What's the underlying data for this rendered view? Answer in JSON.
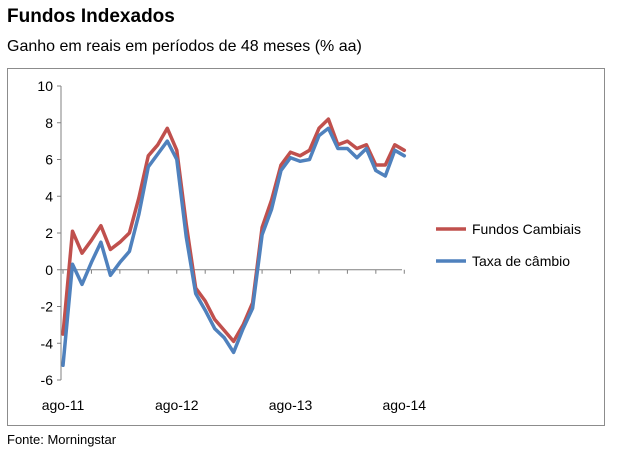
{
  "header": {
    "title": "Fundos Indexados",
    "subtitle": "Ganho em reais em períodos de 48 meses (% aa)"
  },
  "footer": {
    "source": "Fonte: Morningstar"
  },
  "chart_data": {
    "type": "line",
    "title": "Fundos Indexados",
    "subtitle": "Ganho em reais em períodos de 48 meses (% aa)",
    "xlabel": "",
    "ylabel": "",
    "ylim": [
      -6,
      10
    ],
    "yticks": [
      "10",
      "8",
      "6",
      "4",
      "2",
      "0",
      "-2",
      "-4",
      "-6"
    ],
    "yticks_values": [
      10,
      8,
      6,
      4,
      2,
      0,
      -2,
      -4,
      -6
    ],
    "xtick_labels": [
      "ago-11",
      "ago-12",
      "ago-13",
      "ago-14"
    ],
    "xtick_indices": [
      0,
      12,
      24,
      36
    ],
    "legend_position": "right",
    "series": [
      {
        "name": "Fundos Cambiais",
        "color": "#c0504d",
        "values": [
          -3.5,
          2.1,
          0.9,
          1.6,
          2.4,
          1.1,
          1.5,
          2.0,
          3.9,
          6.2,
          6.8,
          7.7,
          6.5,
          2.5,
          -1.0,
          -1.7,
          -2.7,
          -3.3,
          -3.9,
          -3.0,
          -1.8,
          2.3,
          3.8,
          5.7,
          6.4,
          6.2,
          6.5,
          7.7,
          8.2,
          6.8,
          7.0,
          6.6,
          6.8,
          5.7,
          5.7,
          6.8,
          6.5
        ]
      },
      {
        "name": "Taxa de câmbio",
        "color": "#4f81bd",
        "values": [
          -5.2,
          0.3,
          -0.8,
          0.4,
          1.5,
          -0.3,
          0.4,
          1.0,
          3.0,
          5.6,
          6.3,
          7.0,
          6.0,
          1.8,
          -1.3,
          -2.2,
          -3.2,
          -3.7,
          -4.5,
          -3.2,
          -2.1,
          1.9,
          3.3,
          5.4,
          6.1,
          5.9,
          6.0,
          7.3,
          7.7,
          6.6,
          6.6,
          6.1,
          6.6,
          5.4,
          5.1,
          6.5,
          6.2
        ]
      }
    ]
  }
}
